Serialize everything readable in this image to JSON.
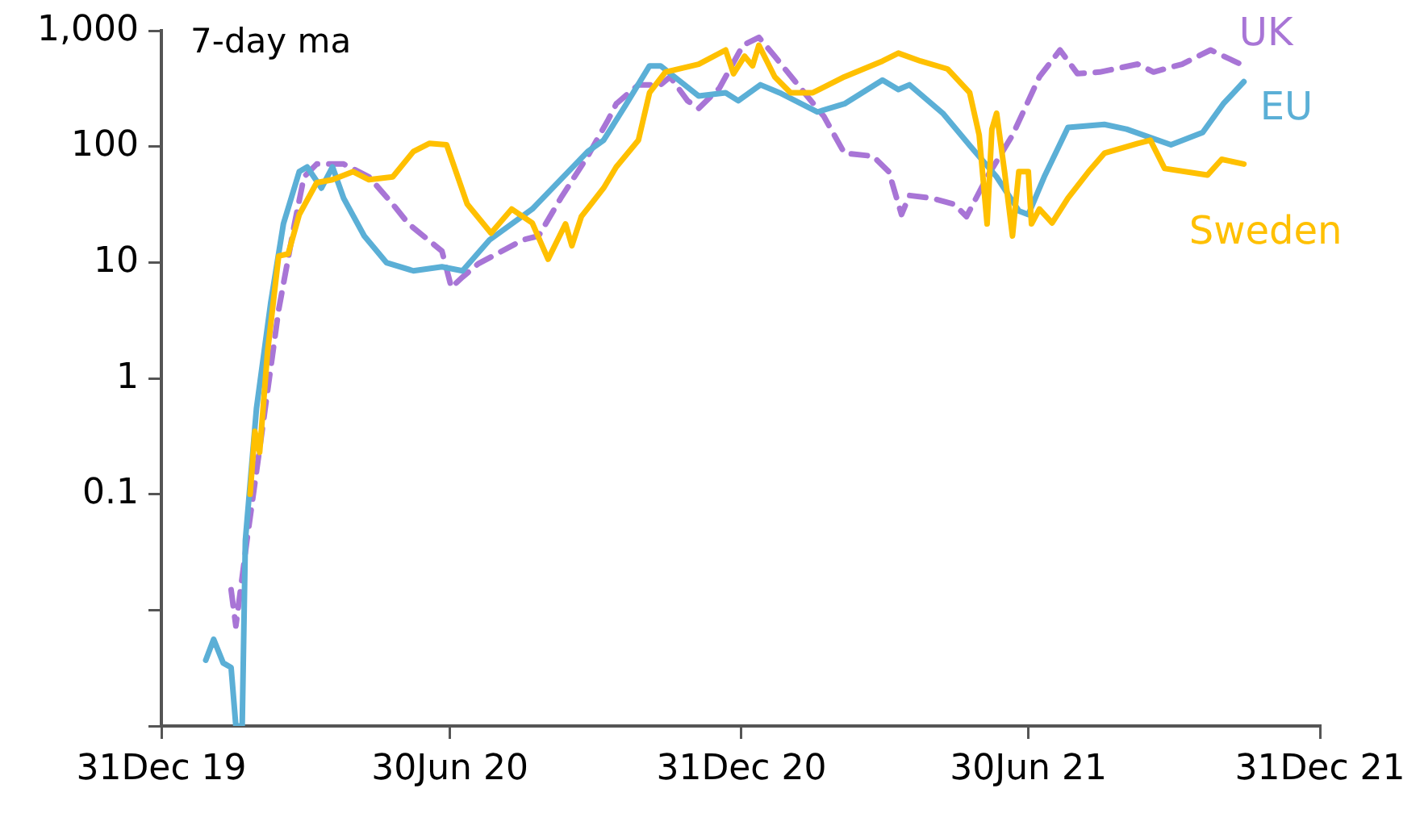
{
  "chart_data": {
    "type": "line",
    "annotations": [
      "7-day ma"
    ],
    "log": "y",
    "grid": false,
    "legend": false,
    "marker": "none",
    "xlim": [
      "2019-12-31",
      "2021-12-31"
    ],
    "xticks": [
      {
        "value": "2019-12-31",
        "label": "31Dec 19"
      },
      {
        "value": "2020-06-30",
        "label": "30Jun 20"
      },
      {
        "value": "2020-12-31",
        "label": "31Dec 20"
      },
      {
        "value": "2021-06-30",
        "label": "30Jun 21"
      },
      {
        "value": "2021-12-31",
        "label": "31Dec 21"
      }
    ],
    "ylim": [
      0.001,
      1000
    ],
    "yticks": [
      {
        "value": 0.001,
        "label": null
      },
      {
        "value": 0.01,
        "label": null
      },
      {
        "value": 0.1,
        "label": "0.1"
      },
      1,
      10,
      100,
      {
        "value": 1000,
        "label": "1,000"
      }
    ],
    "series": [
      {
        "name": "UK",
        "color": "#a875d6",
        "line_style": "dashed",
        "x": [
          "2020-02-13",
          "2020-02-16",
          "2020-02-23",
          "2020-03-04",
          "2020-03-14",
          "2020-03-24",
          "2020-03-30",
          "2020-04-07",
          "2020-04-24",
          "2020-05-10",
          "2020-05-25",
          "2020-06-04",
          "2020-06-25",
          "2020-07-01",
          "2020-07-08",
          "2020-07-18",
          "2020-08-15",
          "2020-08-25",
          "2020-09-08",
          "2020-09-25",
          "2020-10-08",
          "2020-10-13",
          "2020-10-27",
          "2020-11-10",
          "2020-11-16",
          "2020-11-27",
          "2020-12-04",
          "2020-12-17",
          "2021-01-01",
          "2021-01-11",
          "2021-01-21",
          "2021-02-03",
          "2021-02-21",
          "2021-03-06",
          "2021-03-24",
          "2021-04-03",
          "2021-04-11",
          "2021-04-16",
          "2021-04-30",
          "2021-05-14",
          "2021-05-22",
          "2021-06-04",
          "2021-06-20",
          "2021-07-07",
          "2021-07-20",
          "2021-07-31",
          "2021-08-14",
          "2021-09-07",
          "2021-09-17",
          "2021-10-05",
          "2021-10-23",
          "2021-11-11"
        ],
        "values": [
          0.015,
          0.0073,
          0.04,
          0.39,
          3.9,
          21.6,
          55,
          71,
          71,
          55,
          32,
          21.6,
          12.6,
          6.1,
          7.5,
          9.8,
          15.7,
          17,
          36,
          83,
          172,
          235,
          343,
          343,
          402,
          250,
          214,
          320,
          753,
          880,
          605,
          365,
          183,
          88,
          83,
          61,
          26,
          38,
          36,
          32,
          25,
          55,
          126,
          402,
          685,
          428,
          442,
          517,
          442,
          517,
          685,
          517
        ]
      },
      {
        "name": "EU",
        "color": "#5bafd6",
        "line_style": "solid",
        "x": [
          "2020-01-28",
          "2020-02-02",
          "2020-02-08",
          "2020-02-13",
          "2020-02-16",
          "2020-02-20",
          "2020-02-22",
          "2020-02-29",
          "2020-03-09",
          "2020-03-17",
          "2020-03-27",
          "2020-04-01",
          "2020-04-10",
          "2020-04-17",
          "2020-04-24",
          "2020-05-07",
          "2020-05-21",
          "2020-06-07",
          "2020-06-25",
          "2020-07-08",
          "2020-07-25",
          "2020-08-21",
          "2020-09-25",
          "2020-10-05",
          "2020-10-13",
          "2020-10-19",
          "2020-11-03",
          "2020-11-10",
          "2020-12-04",
          "2020-12-21",
          "2020-12-29",
          "2021-01-12",
          "2021-01-24",
          "2021-02-17",
          "2021-03-06",
          "2021-03-30",
          "2021-04-09",
          "2021-04-16",
          "2021-05-07",
          "2021-05-24",
          "2021-06-10",
          "2021-06-24",
          "2021-06-30",
          "2021-07-10",
          "2021-07-25",
          "2021-08-17",
          "2021-08-31",
          "2021-09-28",
          "2021-10-18",
          "2021-10-31",
          "2021-11-13"
        ],
        "values": [
          0.0037,
          0.0056,
          0.0035,
          0.0032,
          0.001,
          0.001,
          0.04,
          0.55,
          4.5,
          21.6,
          61,
          67,
          44,
          67,
          36,
          17,
          10,
          8.5,
          9.2,
          8.5,
          15.7,
          29,
          91,
          114,
          170,
          230,
          500,
          500,
          275,
          293,
          250,
          343,
          293,
          200,
          235,
          377,
          312,
          343,
          195,
          103,
          55,
          28,
          26,
          55,
          147,
          156,
          142,
          104,
          133,
          235,
          365
        ]
      },
      {
        "name": "Sweden",
        "color": "#ffc000",
        "line_style": "solid",
        "x": [
          "2020-02-25",
          "2020-02-28",
          "2020-03-02",
          "2020-03-07",
          "2020-03-14",
          "2020-03-20",
          "2020-03-27",
          "2020-04-07",
          "2020-04-17",
          "2020-04-30",
          "2020-05-10",
          "2020-05-25",
          "2020-06-07",
          "2020-06-17",
          "2020-06-28",
          "2020-07-11",
          "2020-07-26",
          "2020-08-08",
          "2020-08-21",
          "2020-08-31",
          "2020-09-11",
          "2020-09-15",
          "2020-09-21",
          "2020-10-05",
          "2020-10-13",
          "2020-10-27",
          "2020-11-03",
          "2020-11-13",
          "2020-12-04",
          "2020-12-21",
          "2020-12-26",
          "2021-01-02",
          "2021-01-07",
          "2021-01-11",
          "2021-01-21",
          "2021-01-31",
          "2021-02-14",
          "2021-03-06",
          "2021-03-30",
          "2021-04-09",
          "2021-04-23",
          "2021-05-10",
          "2021-05-24",
          "2021-05-30",
          "2021-06-04",
          "2021-06-07",
          "2021-06-10",
          "2021-06-15",
          "2021-06-20",
          "2021-06-24",
          "2021-06-30",
          "2021-07-02",
          "2021-07-07",
          "2021-07-15",
          "2021-07-25",
          "2021-08-07",
          "2021-08-17",
          "2021-09-07",
          "2021-09-15",
          "2021-09-24",
          "2021-10-21",
          "2021-10-30",
          "2021-11-13"
        ],
        "values": [
          0.1,
          0.35,
          0.23,
          1.7,
          11.4,
          11.9,
          26,
          49,
          52,
          61,
          52,
          55,
          91,
          107,
          104,
          32,
          18,
          29,
          22,
          10.7,
          21.6,
          14,
          25,
          44,
          67,
          114,
          293,
          442,
          517,
          685,
          428,
          605,
          500,
          753,
          402,
          293,
          293,
          402,
          550,
          644,
          550,
          470,
          293,
          126,
          21.6,
          142,
          195,
          61,
          17,
          61,
          61,
          21.6,
          29,
          22,
          36,
          61,
          88,
          107,
          114,
          65,
          57,
          78,
          71
        ]
      }
    ]
  }
}
